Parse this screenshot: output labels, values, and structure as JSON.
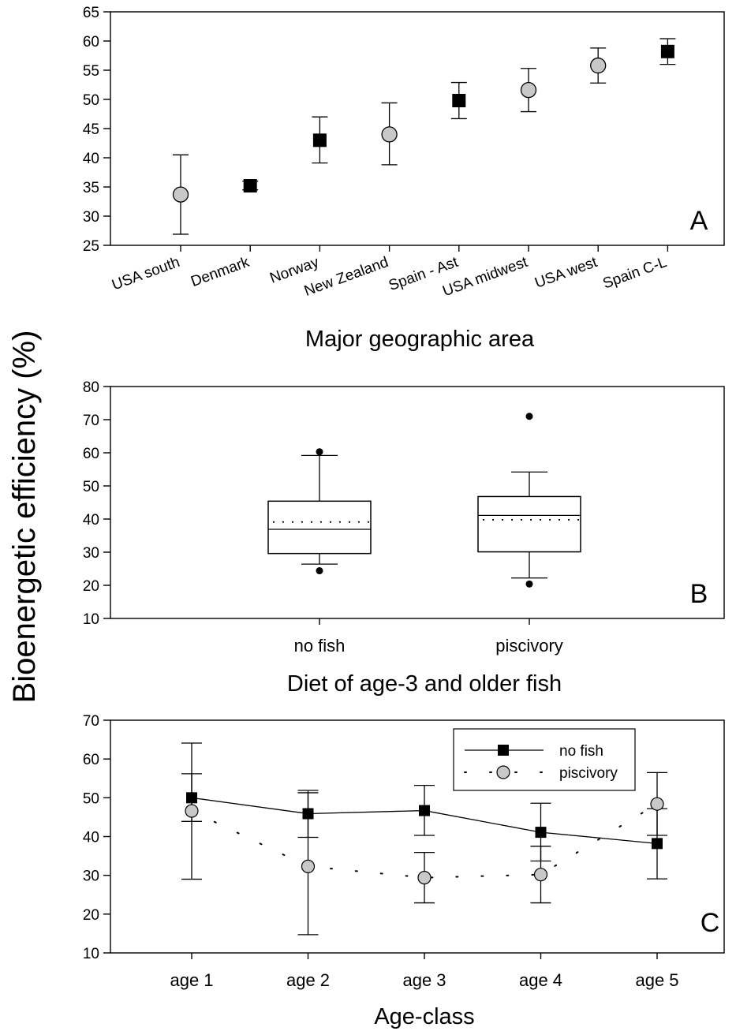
{
  "figure": {
    "shared_ylabel": "Bioenergetic efficiency (%)"
  },
  "chart_data": [
    {
      "id": "A",
      "type": "scatter",
      "panel_letter": "A",
      "xlabel": "Major geographic area",
      "ylim": [
        25,
        65
      ],
      "yticks": [
        25,
        30,
        35,
        40,
        45,
        50,
        55,
        60,
        65
      ],
      "categories": [
        "USA south",
        "Denmark",
        "Norway",
        "New Zealand",
        "Spain -  Ast",
        "USA midwest",
        "USA west",
        "Spain C-L"
      ],
      "points": [
        {
          "category": "USA south",
          "y": 33.7,
          "err_low": 26.9,
          "err_high": 40.5,
          "marker": "circle"
        },
        {
          "category": "Denmark",
          "y": 35.2,
          "err_low": 34.5,
          "err_high": 36.0,
          "marker": "square"
        },
        {
          "category": "Norway",
          "y": 43.0,
          "err_low": 39.1,
          "err_high": 47.0,
          "marker": "square"
        },
        {
          "category": "New Zealand",
          "y": 44.0,
          "err_low": 38.8,
          "err_high": 49.4,
          "marker": "circle"
        },
        {
          "category": "Spain -  Ast",
          "y": 49.8,
          "err_low": 46.7,
          "err_high": 52.9,
          "marker": "square"
        },
        {
          "category": "USA midwest",
          "y": 51.6,
          "err_low": 47.9,
          "err_high": 55.3,
          "marker": "circle"
        },
        {
          "category": "USA west",
          "y": 55.8,
          "err_low": 52.8,
          "err_high": 58.8,
          "marker": "circle"
        },
        {
          "category": "Spain C-L",
          "y": 58.2,
          "err_low": 56.0,
          "err_high": 60.4,
          "marker": "square"
        }
      ],
      "colors": {
        "circle_fill": "#c8c8c8",
        "square_fill": "#000000"
      }
    },
    {
      "id": "B",
      "type": "box",
      "panel_letter": "B",
      "xlabel": "Diet of age-3 and older fish",
      "ylim": [
        10,
        80
      ],
      "yticks": [
        10,
        20,
        30,
        40,
        50,
        60,
        70,
        80
      ],
      "categories": [
        "no fish",
        "piscivory"
      ],
      "boxes": [
        {
          "category": "no fish",
          "whisker_low": 26.4,
          "q1": 29.6,
          "median": 36.9,
          "mean": 39.1,
          "q3": 45.4,
          "whisker_high": 59.2,
          "outliers": [
            60.3,
            24.4
          ]
        },
        {
          "category": "piscivory",
          "whisker_low": 22.2,
          "q1": 30.1,
          "median": 41.1,
          "mean": 39.8,
          "q3": 46.8,
          "whisker_high": 54.2,
          "outliers": [
            71.0,
            20.4
          ]
        }
      ]
    },
    {
      "id": "C",
      "type": "line",
      "panel_letter": "C",
      "xlabel": "Age-class",
      "ylim": [
        10,
        70
      ],
      "yticks": [
        10,
        20,
        30,
        40,
        50,
        60,
        70
      ],
      "categories": [
        "age 1",
        "age 2",
        "age 3",
        "age 4",
        "age 5"
      ],
      "legend_position": "top-right",
      "series": [
        {
          "name": "no fish",
          "marker": "square",
          "line": "solid",
          "values": [
            50.0,
            45.9,
            46.7,
            41.1,
            38.2
          ],
          "err_low": [
            43.9,
            39.8,
            40.3,
            33.7,
            29.1
          ],
          "err_high": [
            56.2,
            51.9,
            53.2,
            48.6,
            47.2
          ]
        },
        {
          "name": "piscivory",
          "marker": "circle",
          "line": "dotted",
          "values": [
            46.6,
            32.3,
            29.4,
            30.2,
            48.4
          ],
          "err_low": [
            29.0,
            14.7,
            22.9,
            22.9,
            40.3
          ],
          "err_high": [
            64.1,
            51.3,
            35.9,
            37.5,
            56.5
          ]
        }
      ],
      "colors": {
        "circle_fill": "#c8c8c8",
        "square_fill": "#000000"
      }
    }
  ]
}
